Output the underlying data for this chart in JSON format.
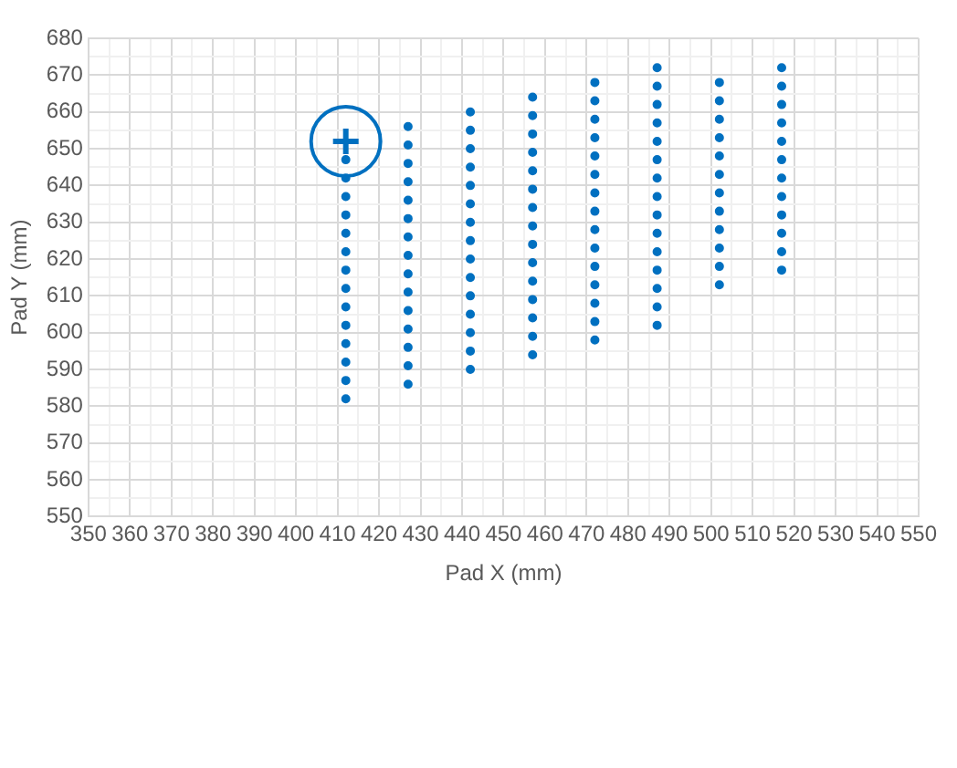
{
  "chart_data": {
    "type": "scatter",
    "xlabel": "Pad X (mm)",
    "ylabel": "Pad Y (mm)",
    "xlim": [
      350,
      550
    ],
    "xticks": [
      350,
      {
        "value": 355,
        "label": null
      },
      360,
      {
        "value": 365,
        "label": null
      },
      370,
      {
        "value": 375,
        "label": null
      },
      380,
      {
        "value": 385,
        "label": null
      },
      390,
      {
        "value": 395,
        "label": null
      },
      400,
      {
        "value": 405,
        "label": null
      },
      410,
      {
        "value": 415,
        "label": null
      },
      420,
      {
        "value": 425,
        "label": null
      },
      430,
      {
        "value": 435,
        "label": null
      },
      440,
      {
        "value": 445,
        "label": null
      },
      450,
      {
        "value": 455,
        "label": null
      },
      460,
      {
        "value": 465,
        "label": null
      },
      470,
      {
        "value": 475,
        "label": null
      },
      480,
      {
        "value": 485,
        "label": null
      },
      490,
      {
        "value": 495,
        "label": null
      },
      500,
      {
        "value": 505,
        "label": null
      },
      510,
      {
        "value": 515,
        "label": null
      },
      520,
      {
        "value": 525,
        "label": null
      },
      530,
      {
        "value": 535,
        "label": null
      },
      540,
      {
        "value": 545,
        "label": null
      },
      550
    ],
    "ylim": [
      550,
      680
    ],
    "yticks": [
      550,
      {
        "value": 555,
        "label": null
      },
      560,
      {
        "value": 565,
        "label": null
      },
      570,
      {
        "value": 575,
        "label": null
      },
      580,
      {
        "value": 585,
        "label": null
      },
      590,
      {
        "value": 595,
        "label": null
      },
      600,
      {
        "value": 605,
        "label": null
      },
      610,
      {
        "value": 615,
        "label": null
      },
      620,
      {
        "value": 625,
        "label": null
      },
      630,
      {
        "value": 635,
        "label": null
      },
      640,
      {
        "value": 645,
        "label": null
      },
      650,
      {
        "value": 655,
        "label": null
      },
      660,
      {
        "value": 665,
        "label": null
      },
      670,
      {
        "value": 675,
        "label": null
      },
      680
    ],
    "grid": true,
    "series": [
      {
        "color": "#0070c0",
        "marker": "circle",
        "x": [
          412,
          412,
          412,
          412,
          412,
          412,
          412,
          412,
          412,
          412,
          412,
          412,
          412,
          412,
          427,
          427,
          427,
          427,
          427,
          427,
          427,
          427,
          427,
          427,
          427,
          427,
          427,
          427,
          427,
          442,
          442,
          442,
          442,
          442,
          442,
          442,
          442,
          442,
          442,
          442,
          442,
          442,
          442,
          442,
          457,
          457,
          457,
          457,
          457,
          457,
          457,
          457,
          457,
          457,
          457,
          457,
          457,
          457,
          457,
          472,
          472,
          472,
          472,
          472,
          472,
          472,
          472,
          472,
          472,
          472,
          472,
          472,
          472,
          472,
          487,
          487,
          487,
          487,
          487,
          487,
          487,
          487,
          487,
          487,
          487,
          487,
          487,
          487,
          487,
          502,
          502,
          502,
          502,
          502,
          502,
          502,
          502,
          502,
          502,
          502,
          502,
          517,
          517,
          517,
          517,
          517,
          517,
          517,
          517,
          517,
          517,
          517,
          517
        ],
        "values": [
          647,
          642,
          637,
          632,
          627,
          622,
          617,
          612,
          607,
          602,
          597,
          592,
          587,
          582,
          656,
          651,
          646,
          641,
          636,
          631,
          626,
          621,
          616,
          611,
          606,
          601,
          596,
          591,
          586,
          660,
          655,
          650,
          645,
          640,
          635,
          630,
          625,
          620,
          615,
          610,
          605,
          600,
          595,
          590,
          664,
          659,
          654,
          649,
          644,
          639,
          634,
          629,
          624,
          619,
          614,
          609,
          604,
          599,
          594,
          668,
          663,
          658,
          653,
          648,
          643,
          638,
          633,
          628,
          623,
          618,
          613,
          608,
          603,
          598,
          672,
          667,
          662,
          657,
          652,
          647,
          642,
          637,
          632,
          627,
          622,
          617,
          612,
          607,
          602,
          668,
          663,
          658,
          653,
          648,
          643,
          638,
          633,
          628,
          623,
          618,
          613,
          672,
          667,
          662,
          657,
          652,
          647,
          642,
          637,
          632,
          627,
          622,
          617
        ]
      },
      {
        "type": "bubble",
        "color": "#0070c0",
        "x": [
          412
        ],
        "values": [
          652
        ],
        "sizes": [
          1
        ]
      },
      {
        "color": "#0070c0",
        "marker": "cross",
        "x": [
          412
        ],
        "values": [
          652
        ]
      }
    ]
  }
}
